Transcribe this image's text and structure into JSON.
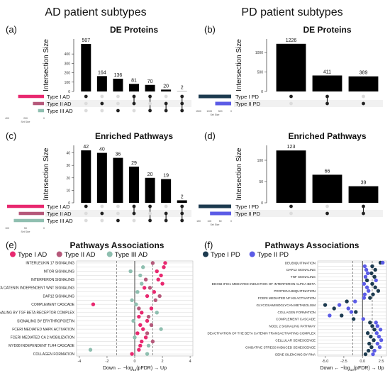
{
  "headers": {
    "left": "AD patient subtypes",
    "right": "PD patient subtypes"
  },
  "colors": {
    "ad1": "#e8286f",
    "ad2": "#b5587a",
    "ad3": "#8fbfb0",
    "pd1": "#1c3a4f",
    "pd2": "#5b5be6"
  },
  "common": {
    "ylabel": "Intersection Size",
    "setsize_label": "Set Size"
  },
  "chart_data": [
    {
      "type": "bar",
      "letter": "(a)",
      "title": "DE Proteins",
      "yticks": [
        0,
        100,
        200,
        300,
        400
      ],
      "ylim": [
        0,
        560
      ],
      "categories": [
        "I only",
        "II only",
        "III only",
        "I&II",
        "I&III",
        "II&III",
        "I&II&III"
      ],
      "values": [
        507,
        164,
        136,
        81,
        70,
        20,
        2
      ],
      "sets": [
        "Type I AD",
        "Type II AD",
        "Type III AD"
      ],
      "set_sizes": [
        700,
        300,
        160
      ],
      "setsize_ticks": [
        "400",
        "200",
        "0"
      ],
      "membership": [
        [
          1,
          0,
          0
        ],
        [
          0,
          1,
          0
        ],
        [
          0,
          0,
          1
        ],
        [
          1,
          1,
          0
        ],
        [
          1,
          0,
          1
        ],
        [
          0,
          1,
          1
        ],
        [
          1,
          1,
          1
        ]
      ]
    },
    {
      "type": "bar",
      "letter": "(b)",
      "title": "DE Proteins",
      "yticks": [
        0,
        500,
        1000
      ],
      "ylim": [
        0,
        1350
      ],
      "categories": [
        "I only",
        "I&II",
        "II only"
      ],
      "values": [
        1226,
        411,
        389
      ],
      "sets": [
        "Type I PD",
        "Type II PD"
      ],
      "set_sizes": [
        1637,
        800
      ],
      "setsize_ticks": [
        "1500",
        "1000",
        "500",
        "0"
      ],
      "membership": [
        [
          1,
          0
        ],
        [
          1,
          1
        ],
        [
          0,
          1
        ]
      ]
    },
    {
      "type": "bar",
      "letter": "(c)",
      "title": "Enriched Pathways",
      "yticks": [
        0,
        10,
        20,
        30,
        40
      ],
      "ylim": [
        0,
        46
      ],
      "categories": [
        "I only",
        "II only",
        "III only",
        "I&II",
        "I&III",
        "II&III",
        "I&II&III"
      ],
      "values": [
        42,
        40,
        36,
        29,
        20,
        19,
        2
      ],
      "sets": [
        "Type I AD",
        "Type II AD",
        "Type III AD"
      ],
      "set_sizes": [
        110,
        75,
        90
      ],
      "setsize_ticks": [
        "100",
        "50",
        "0"
      ],
      "membership": [
        [
          1,
          0,
          0
        ],
        [
          0,
          1,
          0
        ],
        [
          0,
          0,
          1
        ],
        [
          1,
          1,
          0
        ],
        [
          1,
          0,
          1
        ],
        [
          0,
          1,
          1
        ],
        [
          1,
          1,
          1
        ]
      ]
    },
    {
      "type": "bar",
      "letter": "(d)",
      "title": "Enriched Pathways",
      "yticks": [
        0,
        50,
        100
      ],
      "ylim": [
        0,
        135
      ],
      "categories": [
        "I only",
        "II only",
        "I&II"
      ],
      "values": [
        123,
        66,
        39
      ],
      "sets": [
        "Type I PD",
        "Type II PD"
      ],
      "set_sizes": [
        162,
        105
      ],
      "setsize_ticks": [
        "150",
        "100",
        "50",
        "0"
      ],
      "membership": [
        [
          1,
          0
        ],
        [
          0,
          1
        ],
        [
          1,
          1
        ]
      ]
    },
    {
      "type": "scatter",
      "letter": "(e)",
      "title": "Pathways Associations",
      "legend": [
        "Type I AD",
        "Type II AD",
        "Type III AD"
      ],
      "xlim": [
        -4.2,
        4.2
      ],
      "xticks": [
        -4,
        -2,
        0,
        2,
        4
      ],
      "down_label": "Down",
      "up_label": "Up",
      "rows": [
        {
          "label": "INTERLEUKIN 17 SIGNALING",
          "points": [
            [
              2.2,
              0
            ],
            [
              1.3,
              1
            ]
          ]
        },
        {
          "label": "",
          "points": [
            [
              2.1,
              0
            ],
            [
              0.6,
              2
            ]
          ]
        },
        {
          "label": "MTOR SIGNALING",
          "points": [
            [
              1.6,
              0
            ],
            [
              -0.3,
              2
            ]
          ]
        },
        {
          "label": "",
          "points": [
            [
              1.9,
              0
            ],
            [
              0.4,
              2
            ]
          ]
        },
        {
          "label": "INTERFERON SIGNALING",
          "points": [
            [
              1.7,
              0
            ],
            [
              0.8,
              1
            ]
          ]
        },
        {
          "label": "",
          "points": [
            [
              2.0,
              0
            ],
            [
              0.5,
              2
            ]
          ]
        },
        {
          "label": "BETA CATENIN INDEPENDENT WNT SIGNALING",
          "points": [
            [
              0.7,
              0
            ],
            [
              1.1,
              1
            ]
          ]
        },
        {
          "label": "",
          "points": [
            [
              1.4,
              0
            ],
            [
              0.2,
              2
            ]
          ]
        },
        {
          "label": "DAP12 SIGNALING",
          "points": [
            [
              0.9,
              0
            ],
            [
              1.8,
              1
            ]
          ]
        },
        {
          "label": "",
          "points": [
            [
              -0.2,
              2
            ],
            [
              1.5,
              1
            ]
          ]
        },
        {
          "label": "COMPLEMENT CASCADE",
          "points": [
            [
              -3.0,
              0
            ],
            [
              0.1,
              2
            ]
          ]
        },
        {
          "label": "",
          "points": [
            [
              1.2,
              0
            ],
            [
              0.3,
              1
            ]
          ]
        },
        {
          "label": "SIGNALING BY TGF BETA RECEPTOR COMPLEX",
          "points": [
            [
              0.5,
              0
            ],
            [
              1.6,
              2
            ]
          ]
        },
        {
          "label": "",
          "points": [
            [
              0.3,
              0
            ],
            [
              1.0,
              1
            ]
          ]
        },
        {
          "label": "SIGNALING BY ERYTHROPOIETIN",
          "points": [
            [
              0.9,
              0
            ],
            [
              -0.1,
              2
            ]
          ]
        },
        {
          "label": "",
          "points": [
            [
              0.4,
              0
            ],
            [
              1.2,
              1
            ]
          ]
        },
        {
          "label": "FCERI MEDIATED MAPK ACTIVATION",
          "points": [
            [
              0.6,
              0
            ],
            [
              1.9,
              2
            ]
          ]
        },
        {
          "label": "",
          "points": [
            [
              0.2,
              0
            ],
            [
              0.9,
              1
            ]
          ]
        },
        {
          "label": "FCERI MEDIATED CA 2 MOBILIZATION",
          "points": [
            [
              0.8,
              0
            ],
            [
              0.0,
              2
            ]
          ]
        },
        {
          "label": "",
          "points": [
            [
              0.5,
              0
            ],
            [
              1.3,
              1
            ]
          ]
        },
        {
          "label": "MYD88 INDEPENDENT TLR4 CASCADE",
          "points": [
            [
              0.4,
              0
            ],
            [
              1.0,
              2
            ]
          ]
        },
        {
          "label": "",
          "points": [
            [
              -3.2,
              2
            ],
            [
              0.3,
              0
            ]
          ]
        },
        {
          "label": "COLLAGEN FORMATION",
          "points": [
            [
              -0.2,
              0
            ],
            [
              0.9,
              2
            ]
          ]
        }
      ]
    },
    {
      "type": "scatter",
      "letter": "(f)",
      "title": "Pathways Associations",
      "legend": [
        "Type I PD",
        "Type II PD"
      ],
      "xlim": [
        -6.0,
        3.2
      ],
      "xticks": [
        -5.0,
        -2.5,
        0.0,
        2.5
      ],
      "xticklabels": [
        "-5.0",
        "-2.5",
        "0.0",
        "2.5"
      ],
      "down_label": "Down",
      "up_label": "Up",
      "rows": [
        {
          "label": "DEUBIQUITINATION",
          "points": [
            [
              2.4,
              0
            ],
            [
              2.7,
              1
            ]
          ]
        },
        {
          "label": "",
          "points": [
            [
              1.3,
              0
            ],
            [
              0.3,
              1
            ]
          ]
        },
        {
          "label": "DAP12 SIGNALING",
          "points": [
            [
              1.7,
              0
            ],
            [
              0.5,
              1
            ]
          ]
        },
        {
          "label": "",
          "points": [
            [
              1.2,
              0
            ],
            [
              0.7,
              1
            ]
          ]
        },
        {
          "label": "TNF SIGNALING",
          "points": [
            [
              1.6,
              0
            ],
            [
              0.4,
              1
            ]
          ]
        },
        {
          "label": "",
          "points": [
            [
              0.6,
              0
            ],
            [
              1.8,
              1
            ]
          ]
        },
        {
          "label": "DDX58 IFIH1 MEDIATED INDUCTION OF INTERFERON ALPHA BETA",
          "points": [
            [
              1.3,
              0
            ],
            [
              0.2,
              1
            ]
          ]
        },
        {
          "label": "",
          "points": [
            [
              1.7,
              0
            ],
            [
              0.6,
              1
            ]
          ]
        },
        {
          "label": "PROTEIN UBIQUITINATION",
          "points": [
            [
              2.1,
              0
            ],
            [
              0.8,
              1
            ]
          ]
        },
        {
          "label": "",
          "points": [
            [
              1.4,
              0
            ],
            [
              0.3,
              1
            ]
          ]
        },
        {
          "label": "FCERI MEDIATED NF KB ACTIVATION",
          "points": [
            [
              1.0,
              0
            ],
            [
              0.2,
              1
            ]
          ]
        },
        {
          "label": "",
          "points": [
            [
              -2.1,
              0
            ],
            [
              -1.0,
              1
            ]
          ]
        },
        {
          "label": "GLYCOSAMINOGLYCAN METABOLISM",
          "points": [
            [
              -5.0,
              0
            ],
            [
              -3.1,
              1
            ]
          ]
        },
        {
          "label": "",
          "points": [
            [
              -3.8,
              0
            ],
            [
              -1.9,
              1
            ]
          ]
        },
        {
          "label": "COLLAGEN FORMATION",
          "points": [
            [
              -0.9,
              0
            ],
            [
              -1.5,
              1
            ]
          ]
        },
        {
          "label": "",
          "points": [
            [
              -2.8,
              0
            ],
            [
              -4.4,
              1
            ]
          ]
        },
        {
          "label": "COMPLEMENT CASCADE",
          "points": [
            [
              -1.2,
              0
            ],
            [
              0.1,
              1
            ]
          ]
        },
        {
          "label": "",
          "points": [
            [
              1.0,
              0
            ],
            [
              1.8,
              1
            ]
          ]
        },
        {
          "label": "NOD1 2 SIGNALING PATHWAY",
          "points": [
            [
              1.3,
              0
            ],
            [
              2.0,
              1
            ]
          ]
        },
        {
          "label": "",
          "points": [
            [
              1.6,
              0
            ],
            [
              2.4,
              1
            ]
          ]
        },
        {
          "label": "DEACTIVATION OF THE BETA CATENIN TRANSACTIVATING COMPLEX",
          "points": [
            [
              0.7,
              0
            ],
            [
              1.9,
              1
            ]
          ]
        },
        {
          "label": "",
          "points": [
            [
              1.1,
              0
            ],
            [
              2.2,
              1
            ]
          ]
        },
        {
          "label": "CELLULAR SENESCENCE",
          "points": [
            [
              1.5,
              0
            ],
            [
              2.5,
              1
            ]
          ]
        },
        {
          "label": "",
          "points": [
            [
              0.9,
              0
            ],
            [
              2.0,
              1
            ]
          ]
        },
        {
          "label": "OXIDATIVE STRESS INDUCED SENESCENCE",
          "points": [
            [
              1.2,
              0
            ],
            [
              2.3,
              1
            ]
          ]
        },
        {
          "label": "",
          "points": [
            [
              0.8,
              0
            ],
            [
              1.6,
              1
            ]
          ]
        },
        {
          "label": "GENE SILENCING BY RNA",
          "points": [
            [
              0.4,
              0
            ],
            [
              1.4,
              1
            ]
          ]
        }
      ]
    }
  ]
}
